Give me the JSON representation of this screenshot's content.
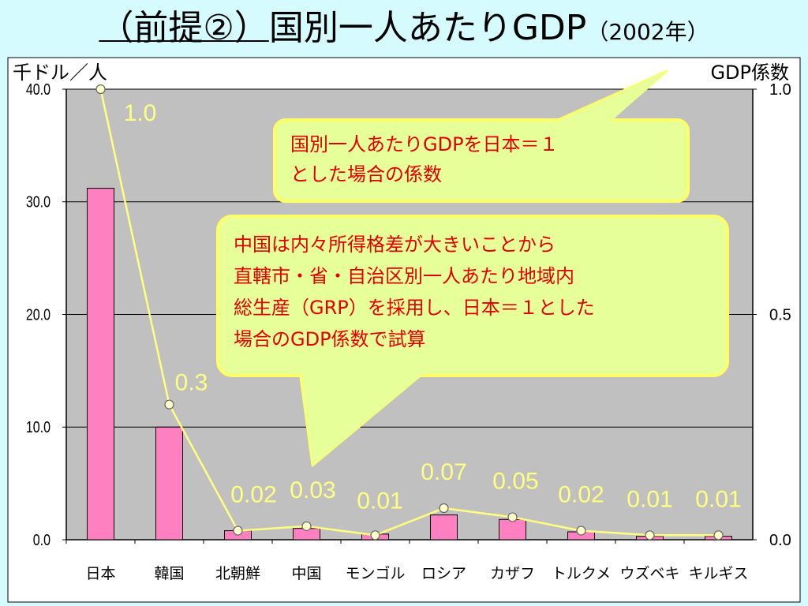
{
  "title": {
    "prefix": "（前提②）",
    "main": "国別一人あたりGDP",
    "year": "（2002年）"
  },
  "chart_data": {
    "type": "bar",
    "categories": [
      "日本",
      "韓国",
      "北朝鮮",
      "中国",
      "モンゴル",
      "ロシア",
      "カザフ",
      "トルクメ",
      "ウズベキ",
      "キルギス"
    ],
    "ylabel_left": "千ドル／人",
    "ylabel_right": "GDP係数",
    "ylim_left": [
      0,
      40
    ],
    "ylim_right": [
      0,
      1
    ],
    "yticks_left": [
      "0.0",
      "10.0",
      "20.0",
      "30.0",
      "40.0"
    ],
    "yticks_right": [
      "0.0",
      "0.5",
      "1.0"
    ],
    "grid": true,
    "series": [
      {
        "type": "bar",
        "axis": "left",
        "color": "#ff80c0",
        "values": [
          31.2,
          10.0,
          0.8,
          1.0,
          0.5,
          2.2,
          1.8,
          0.7,
          0.3,
          0.3
        ]
      },
      {
        "type": "line",
        "axis": "right",
        "color": "#ffff80",
        "values": [
          1.0,
          0.3,
          0.02,
          0.03,
          0.01,
          0.07,
          0.05,
          0.02,
          0.01,
          0.01
        ],
        "labels": [
          "1.0",
          "0.3",
          "0.02",
          "0.03",
          "0.01",
          "0.07",
          "0.05",
          "0.02",
          "0.01",
          "0.01"
        ]
      }
    ]
  },
  "callouts": {
    "gdp_coefficient": "国別一人あたりGDPを日本＝１\nとした場合の係数",
    "china_note": "中国は内々所得格差が大きいことから\n直轄市・省・自治区別一人あたり地域内\n総生産（GRP）を採用し、日本＝１とした\n場合のGDP係数で試算"
  },
  "colors": {
    "plot_bg": "#c0c0c0",
    "callout_bg": "#e6ff99",
    "callout_border": "#ffff66",
    "callout_text": "#e00000",
    "page_bg": "#d6fbff"
  }
}
